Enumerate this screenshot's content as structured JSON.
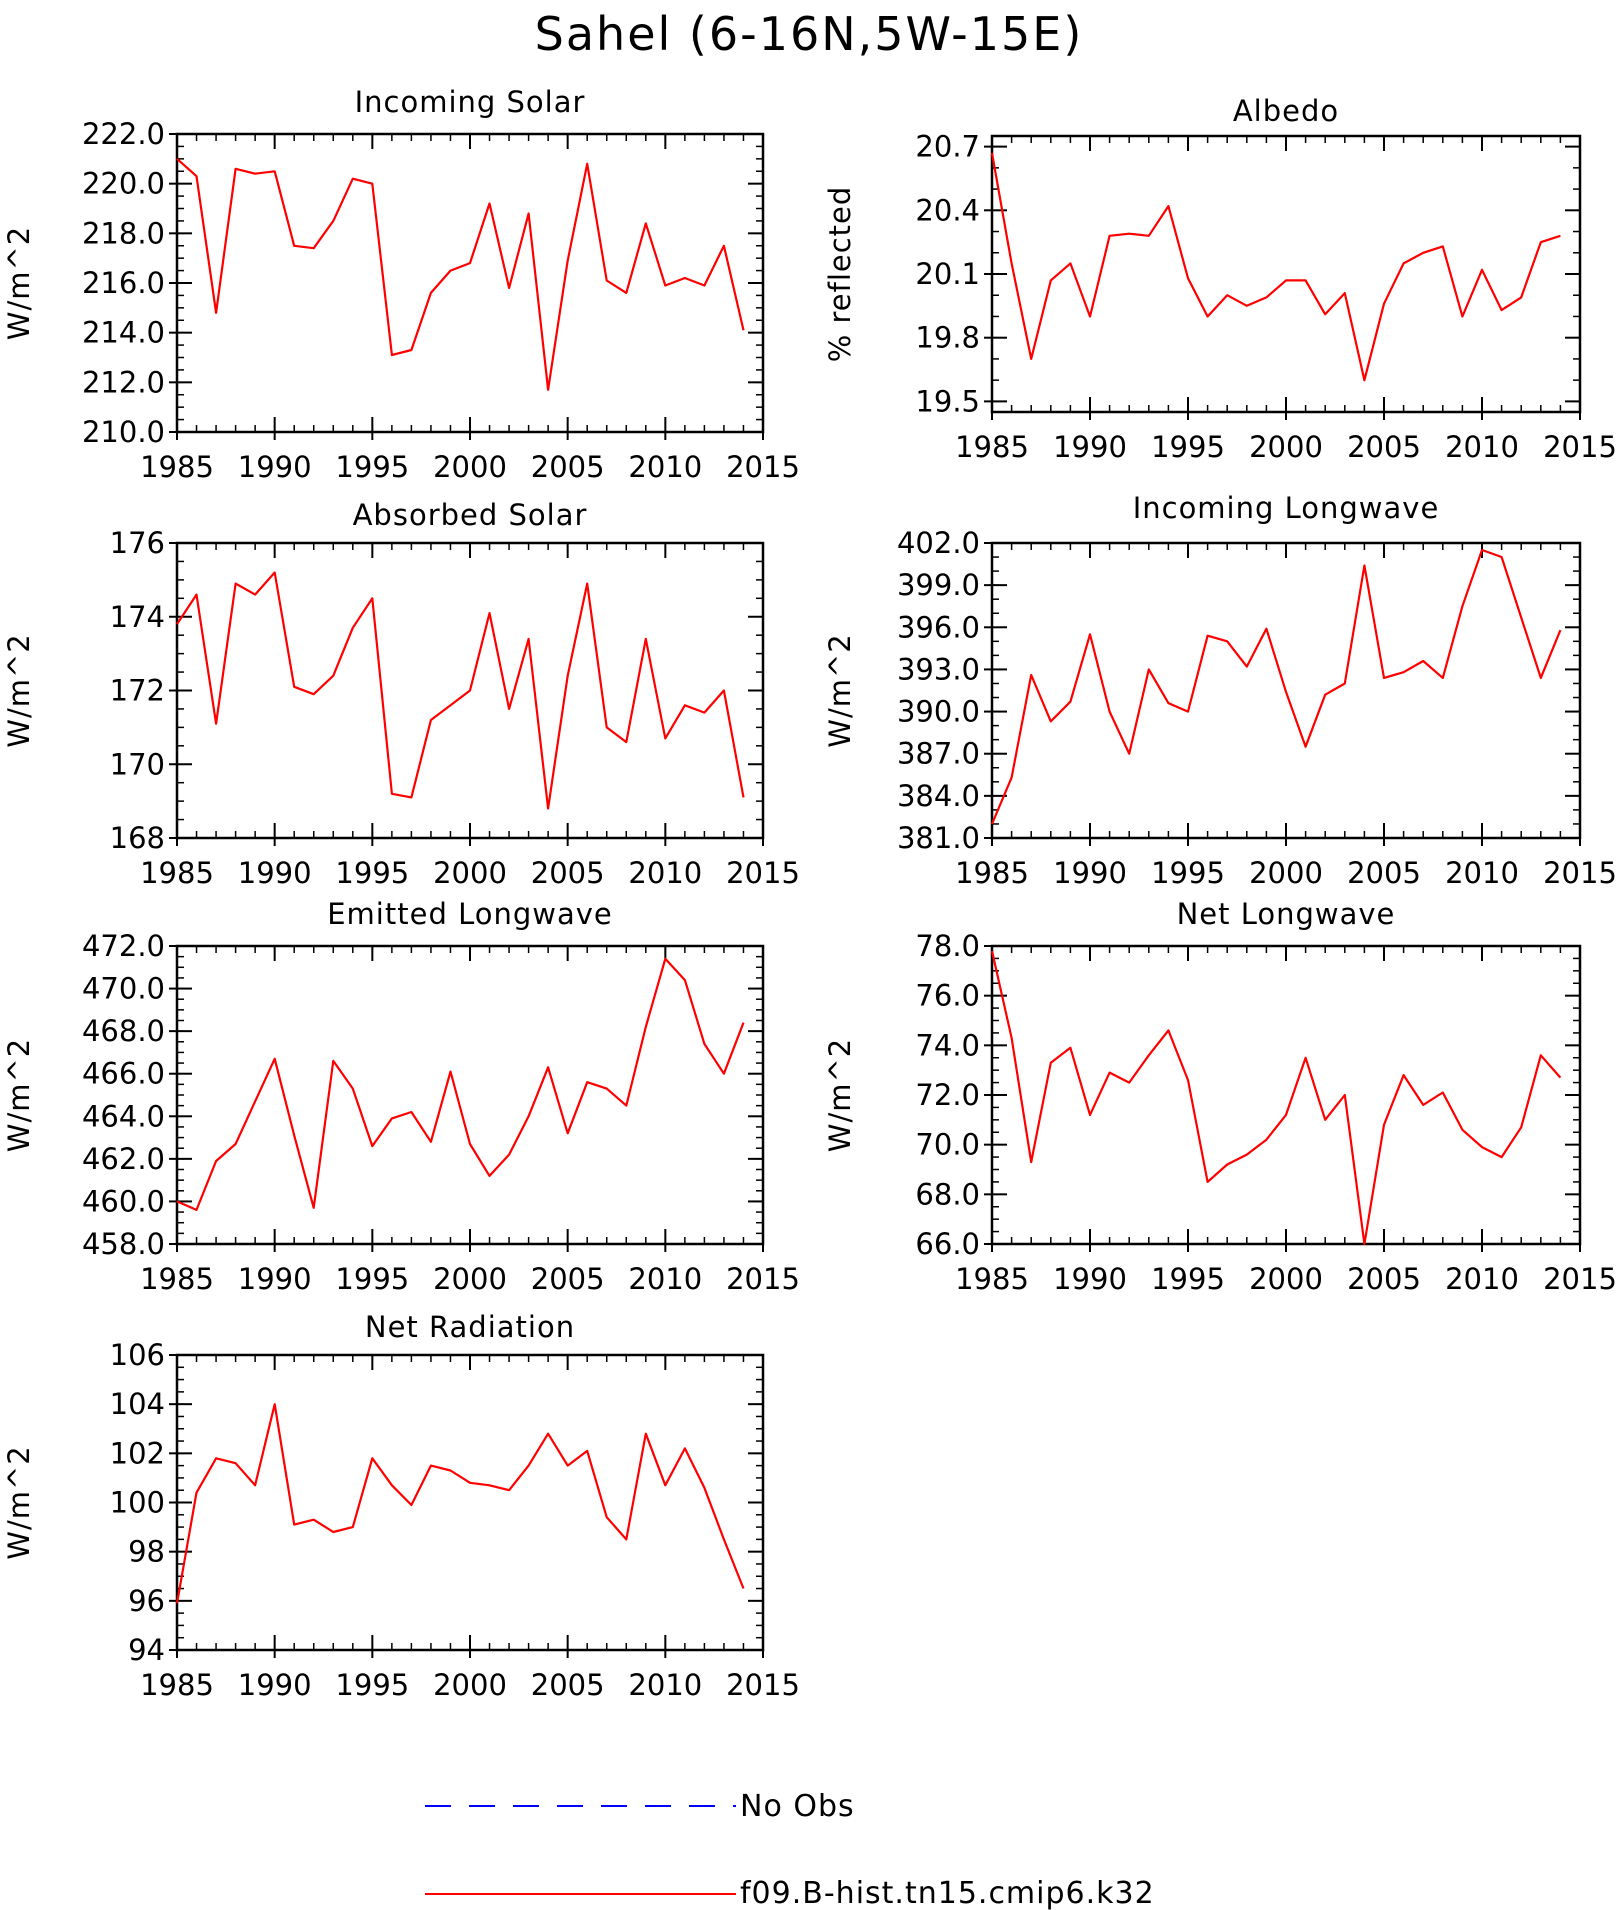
{
  "figure": {
    "title": "Sahel (6-16N,5W-15E)",
    "legend": [
      {
        "label": "No Obs",
        "color": "#0000ff",
        "style": "dashed"
      },
      {
        "label": "f09.B-hist.tn15.cmip6.k32",
        "color": "#ff0000",
        "style": "solid"
      }
    ]
  },
  "chart_data": [
    {
      "type": "line",
      "title": "Incoming Solar",
      "ylabel": "W/m^2",
      "xlim": [
        1985,
        2015
      ],
      "ylim": [
        210,
        222
      ],
      "xticks": [
        1985,
        1990,
        1995,
        2000,
        2005,
        2010,
        2015
      ],
      "yticks": [
        210,
        212,
        214,
        216,
        218,
        220,
        222
      ],
      "ytick_labels": [
        "210.0",
        "212.0",
        "214.0",
        "216.0",
        "218.0",
        "220.0",
        "222.0"
      ],
      "x_minor_step": 1,
      "y_minor_step": 0.5,
      "series": [
        {
          "color": "#ff0000",
          "x": [
            1985,
            1986,
            1987,
            1988,
            1989,
            1990,
            1991,
            1992,
            1993,
            1994,
            1995,
            1996,
            1997,
            1998,
            1999,
            2000,
            2001,
            2002,
            2003,
            2004,
            2005,
            2006,
            2007,
            2008,
            2009,
            2010,
            2011,
            2012,
            2013,
            2014
          ],
          "values": [
            221.0,
            220.3,
            214.8,
            220.6,
            220.4,
            220.5,
            217.5,
            217.4,
            218.5,
            220.2,
            220.0,
            213.1,
            213.3,
            215.6,
            216.5,
            216.8,
            219.2,
            215.8,
            218.8,
            211.7,
            216.9,
            220.8,
            216.1,
            215.6,
            218.4,
            215.9,
            216.2,
            215.9,
            217.5,
            214.1
          ]
        }
      ]
    },
    {
      "type": "line",
      "title": "Albedo",
      "ylabel": "% reflected",
      "xlim": [
        1985,
        2015
      ],
      "ylim": [
        19.45,
        20.75
      ],
      "xticks": [
        1985,
        1990,
        1995,
        2000,
        2005,
        2010,
        2015
      ],
      "yticks": [
        19.5,
        19.8,
        20.1,
        20.4,
        20.7
      ],
      "ytick_labels": [
        "19.5",
        "19.8",
        "20.1",
        "20.4",
        "20.7"
      ],
      "x_minor_step": 1,
      "y_minor_step": 0.1,
      "series": [
        {
          "color": "#ff0000",
          "x": [
            1985,
            1986,
            1987,
            1988,
            1989,
            1990,
            1991,
            1992,
            1993,
            1994,
            1995,
            1996,
            1997,
            1998,
            1999,
            2000,
            2001,
            2002,
            2003,
            2004,
            2005,
            2006,
            2007,
            2008,
            2009,
            2010,
            2011,
            2012,
            2013,
            2014
          ],
          "values": [
            20.67,
            20.15,
            19.7,
            20.07,
            20.15,
            19.9,
            20.28,
            20.29,
            20.28,
            20.42,
            20.08,
            19.9,
            20.0,
            19.95,
            19.99,
            20.07,
            20.07,
            19.91,
            20.01,
            19.6,
            19.96,
            20.15,
            20.2,
            20.23,
            19.9,
            20.12,
            19.93,
            19.99,
            20.25,
            20.28
          ]
        }
      ]
    },
    {
      "type": "line",
      "title": "Absorbed Solar",
      "ylabel": "W/m^2",
      "xlim": [
        1985,
        2015
      ],
      "ylim": [
        168,
        176
      ],
      "xticks": [
        1985,
        1990,
        1995,
        2000,
        2005,
        2010,
        2015
      ],
      "yticks": [
        168,
        170,
        172,
        174,
        176
      ],
      "ytick_labels": [
        "168",
        "170",
        "172",
        "174",
        "176"
      ],
      "x_minor_step": 1,
      "y_minor_step": 0.5,
      "series": [
        {
          "color": "#ff0000",
          "x": [
            1985,
            1986,
            1987,
            1988,
            1989,
            1990,
            1991,
            1992,
            1993,
            1994,
            1995,
            1996,
            1997,
            1998,
            1999,
            2000,
            2001,
            2002,
            2003,
            2004,
            2005,
            2006,
            2007,
            2008,
            2009,
            2010,
            2011,
            2012,
            2013,
            2014
          ],
          "values": [
            173.8,
            174.6,
            171.1,
            174.9,
            174.6,
            175.2,
            172.1,
            171.9,
            172.4,
            173.7,
            174.5,
            169.2,
            169.1,
            171.2,
            171.6,
            172.0,
            174.1,
            171.5,
            173.4,
            168.8,
            172.4,
            174.9,
            171.0,
            170.6,
            173.4,
            170.7,
            171.6,
            171.4,
            172.0,
            169.1
          ]
        }
      ]
    },
    {
      "type": "line",
      "title": "Incoming Longwave",
      "ylabel": "W/m^2",
      "xlim": [
        1985,
        2015
      ],
      "ylim": [
        381,
        402
      ],
      "xticks": [
        1985,
        1990,
        1995,
        2000,
        2005,
        2010,
        2015
      ],
      "yticks": [
        381,
        384,
        387,
        390,
        393,
        396,
        399,
        402
      ],
      "ytick_labels": [
        "381.0",
        "384.0",
        "387.0",
        "390.0",
        "393.0",
        "396.0",
        "399.0",
        "402.0"
      ],
      "x_minor_step": 1,
      "y_minor_step": 1,
      "series": [
        {
          "color": "#ff0000",
          "x": [
            1985,
            1986,
            1987,
            1988,
            1989,
            1990,
            1991,
            1992,
            1993,
            1994,
            1995,
            1996,
            1997,
            1998,
            1999,
            2000,
            2001,
            2002,
            2003,
            2004,
            2005,
            2006,
            2007,
            2008,
            2009,
            2010,
            2011,
            2012,
            2013,
            2014
          ],
          "values": [
            382.0,
            385.3,
            392.6,
            389.3,
            390.7,
            395.5,
            390.0,
            387.0,
            393.0,
            390.6,
            390.0,
            395.4,
            395.0,
            393.2,
            395.9,
            391.4,
            387.5,
            391.2,
            392.0,
            400.4,
            392.4,
            392.8,
            393.6,
            392.4,
            397.5,
            401.5,
            401.0,
            396.7,
            392.4,
            395.8
          ]
        }
      ]
    },
    {
      "type": "line",
      "title": "Emitted Longwave",
      "ylabel": "W/m^2",
      "xlim": [
        1985,
        2015
      ],
      "ylim": [
        458,
        472
      ],
      "xticks": [
        1985,
        1990,
        1995,
        2000,
        2005,
        2010,
        2015
      ],
      "yticks": [
        458,
        460,
        462,
        464,
        466,
        468,
        470,
        472
      ],
      "ytick_labels": [
        "458.0",
        "460.0",
        "462.0",
        "464.0",
        "466.0",
        "468.0",
        "470.0",
        "472.0"
      ],
      "x_minor_step": 1,
      "y_minor_step": 0.5,
      "series": [
        {
          "color": "#ff0000",
          "x": [
            1985,
            1986,
            1987,
            1988,
            1989,
            1990,
            1991,
            1992,
            1993,
            1994,
            1995,
            1996,
            1997,
            1998,
            1999,
            2000,
            2001,
            2002,
            2003,
            2004,
            2005,
            2006,
            2007,
            2008,
            2009,
            2010,
            2011,
            2012,
            2013,
            2014
          ],
          "values": [
            460.0,
            459.6,
            461.9,
            462.7,
            464.7,
            466.7,
            463.1,
            459.7,
            466.6,
            465.3,
            462.6,
            463.9,
            464.2,
            462.8,
            466.1,
            462.7,
            461.2,
            462.2,
            464.0,
            466.3,
            463.2,
            465.6,
            465.3,
            464.5,
            468.2,
            471.4,
            470.4,
            467.4,
            466.0,
            468.4
          ]
        }
      ]
    },
    {
      "type": "line",
      "title": "Net Longwave",
      "ylabel": "W/m^2",
      "xlim": [
        1985,
        2015
      ],
      "ylim": [
        66,
        78
      ],
      "xticks": [
        1985,
        1990,
        1995,
        2000,
        2005,
        2010,
        2015
      ],
      "yticks": [
        66,
        68,
        70,
        72,
        74,
        76,
        78
      ],
      "ytick_labels": [
        "66.0",
        "68.0",
        "70.0",
        "72.0",
        "74.0",
        "76.0",
        "78.0"
      ],
      "x_minor_step": 1,
      "y_minor_step": 0.5,
      "series": [
        {
          "color": "#ff0000",
          "x": [
            1985,
            1986,
            1987,
            1988,
            1989,
            1990,
            1991,
            1992,
            1993,
            1994,
            1995,
            1996,
            1997,
            1998,
            1999,
            2000,
            2001,
            2002,
            2003,
            2004,
            2005,
            2006,
            2007,
            2008,
            2009,
            2010,
            2011,
            2012,
            2013,
            2014
          ],
          "values": [
            77.8,
            74.3,
            69.3,
            73.3,
            73.9,
            71.2,
            72.9,
            72.5,
            73.6,
            74.6,
            72.6,
            68.5,
            69.2,
            69.6,
            70.2,
            71.2,
            73.5,
            71.0,
            72.0,
            66.0,
            70.8,
            72.8,
            71.6,
            72.1,
            70.6,
            69.9,
            69.5,
            70.7,
            73.6,
            72.7
          ]
        }
      ]
    },
    {
      "type": "line",
      "title": "Net Radiation",
      "ylabel": "W/m^2",
      "xlim": [
        1985,
        2015
      ],
      "ylim": [
        94,
        106
      ],
      "xticks": [
        1985,
        1990,
        1995,
        2000,
        2005,
        2010,
        2015
      ],
      "yticks": [
        94,
        96,
        98,
        100,
        102,
        104,
        106
      ],
      "ytick_labels": [
        "94",
        "96",
        "98",
        "100",
        "102",
        "104",
        "106"
      ],
      "x_minor_step": 1,
      "y_minor_step": 0.5,
      "series": [
        {
          "color": "#ff0000",
          "x": [
            1985,
            1986,
            1987,
            1988,
            1989,
            1990,
            1991,
            1992,
            1993,
            1994,
            1995,
            1996,
            1997,
            1998,
            1999,
            2000,
            2001,
            2002,
            2003,
            2004,
            2005,
            2006,
            2007,
            2008,
            2009,
            2010,
            2011,
            2012,
            2013,
            2014
          ],
          "values": [
            95.9,
            100.4,
            101.8,
            101.6,
            100.7,
            104.0,
            99.1,
            99.3,
            98.8,
            99.0,
            101.8,
            100.7,
            99.9,
            101.5,
            101.3,
            100.8,
            100.7,
            100.5,
            101.5,
            102.8,
            101.5,
            102.1,
            99.4,
            98.5,
            102.8,
            100.7,
            102.2,
            100.6,
            98.5,
            96.5
          ]
        }
      ]
    }
  ]
}
